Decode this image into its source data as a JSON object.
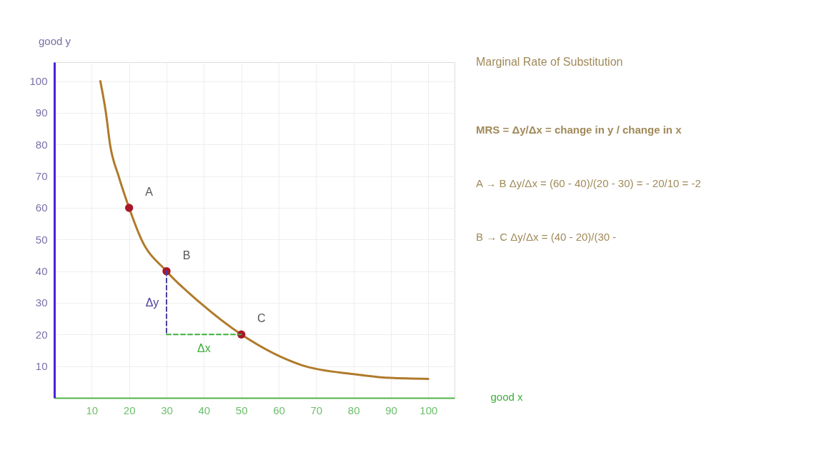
{
  "chart_data": {
    "type": "line",
    "xlabel": "good x",
    "ylabel": "good y",
    "xlim": [
      0,
      107
    ],
    "ylim": [
      0,
      106
    ],
    "xticks": [
      10,
      20,
      30,
      40,
      50,
      60,
      70,
      80,
      90,
      100
    ],
    "yticks": [
      10,
      20,
      30,
      40,
      50,
      60,
      70,
      80,
      90,
      100
    ],
    "grid": true,
    "series": [
      {
        "color": "#b07a2a",
        "marker": "none",
        "line_style": "solid",
        "x": [
          12.3,
          13.8,
          14.9,
          17.2,
          20,
          23.3,
          30,
          39,
          50,
          67,
          80,
          90,
          100
        ],
        "values": [
          100,
          90,
          80,
          70,
          60,
          50,
          40,
          30,
          20,
          10,
          7.5,
          6.3,
          6
        ]
      },
      {
        "type": "scatter",
        "color": "#a8182a",
        "marker": "circle",
        "x": [
          20,
          30,
          50
        ],
        "values": [
          60,
          40,
          20
        ]
      },
      {
        "color": "#4b3fa0",
        "marker": "none",
        "line_style": "dashed",
        "x": [
          30,
          30
        ],
        "values": [
          40,
          20
        ]
      },
      {
        "color": "#3fae3f",
        "marker": "none",
        "line_style": "dashed",
        "x": [
          30,
          50
        ],
        "values": [
          20,
          20
        ]
      }
    ],
    "annotations": [
      {
        "text": "A",
        "x": 20,
        "y": 60
      },
      {
        "text": "B",
        "x": 30,
        "y": 40
      },
      {
        "text": "C",
        "x": 50,
        "y": 20
      },
      {
        "text": "Δy",
        "x": 30,
        "y": 30
      },
      {
        "text": "Δx",
        "x": 40,
        "y": 20
      },
      "Marginal Rate of Substitution",
      "MRS = Δy/Δx = change in y / change in x",
      "A → B   Δy/Δx = (60 - 40)/(20 - 30) = - 20/10 = -2",
      "B → C   Δy/Δx = (40 - 20)/(30 -"
    ]
  }
}
